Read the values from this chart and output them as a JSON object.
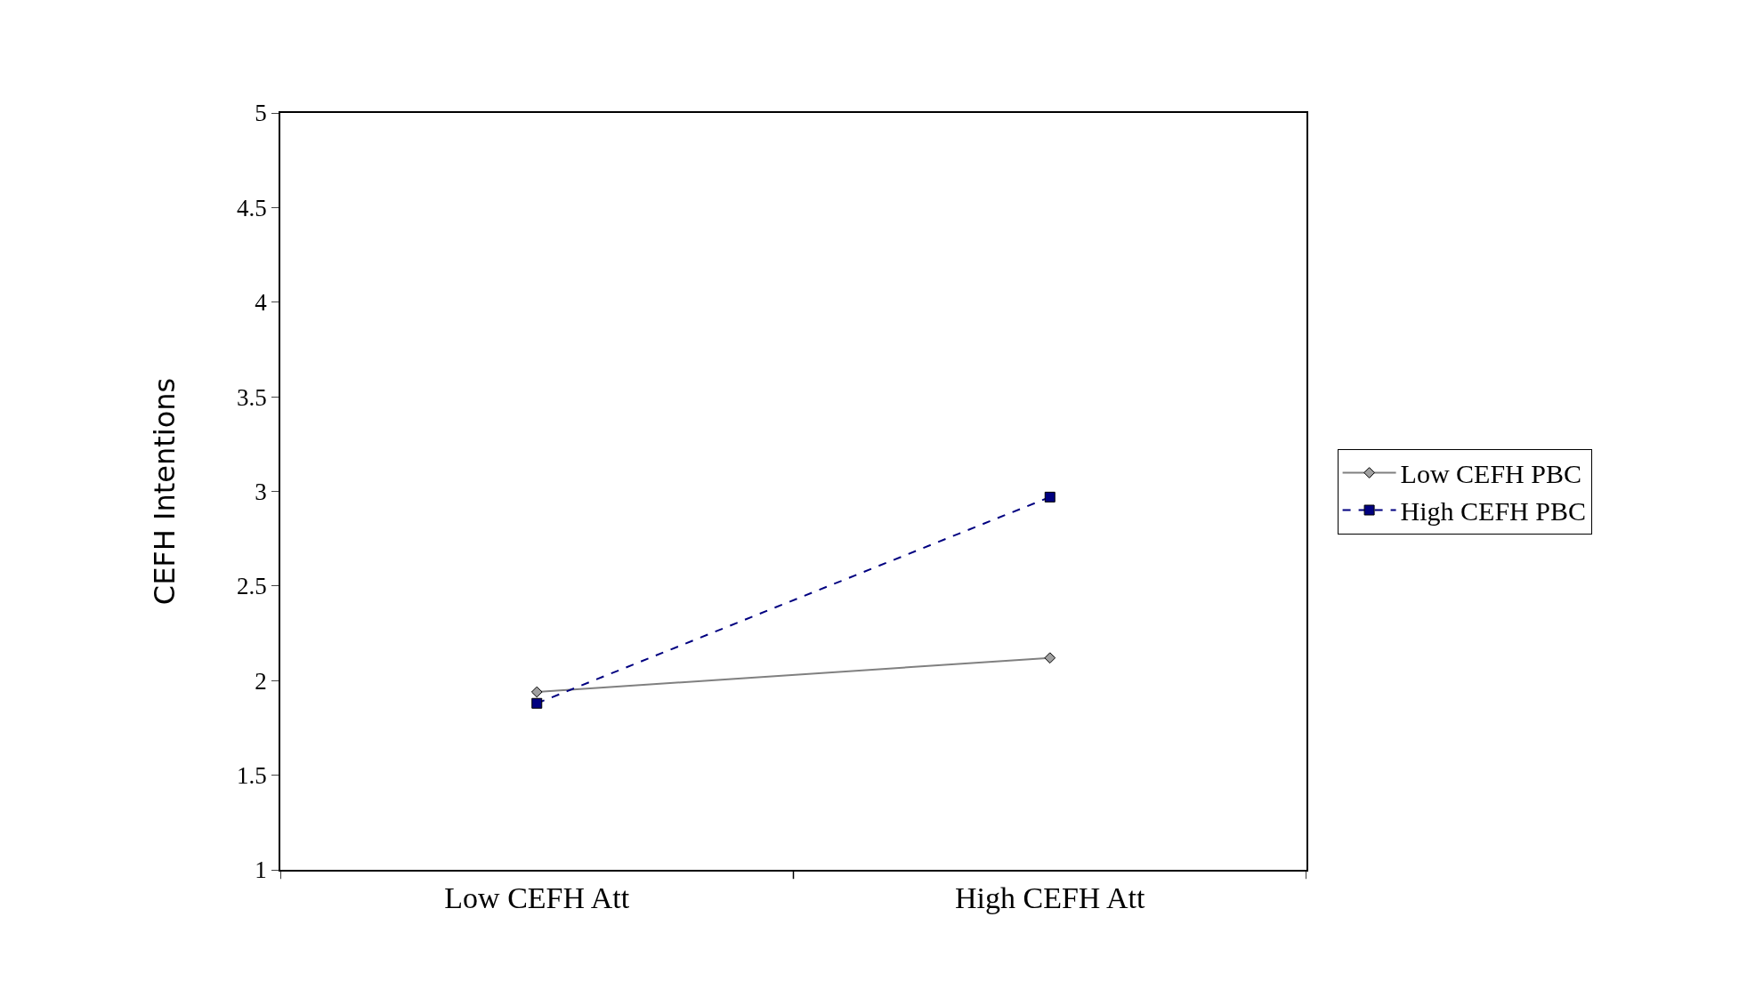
{
  "chart_data": {
    "type": "line",
    "ylabel": "CEFH Intentions",
    "categories": [
      "Low CEFH Att",
      "High CEFH Att"
    ],
    "series": [
      {
        "name": "Low CEFH PBC",
        "color": "#808080",
        "values": [
          1.94,
          2.12
        ],
        "marker": "diamond",
        "line_style": "solid"
      },
      {
        "name": "High CEFH PBC",
        "color": "#000080",
        "values": [
          1.88,
          2.97
        ],
        "marker": "square",
        "line_style": "dashed"
      }
    ],
    "ylim": [
      1,
      5
    ],
    "yticks": [
      1,
      1.5,
      2,
      2.5,
      3,
      3.5,
      4,
      4.5,
      5
    ],
    "grid": false,
    "legend": "right"
  }
}
